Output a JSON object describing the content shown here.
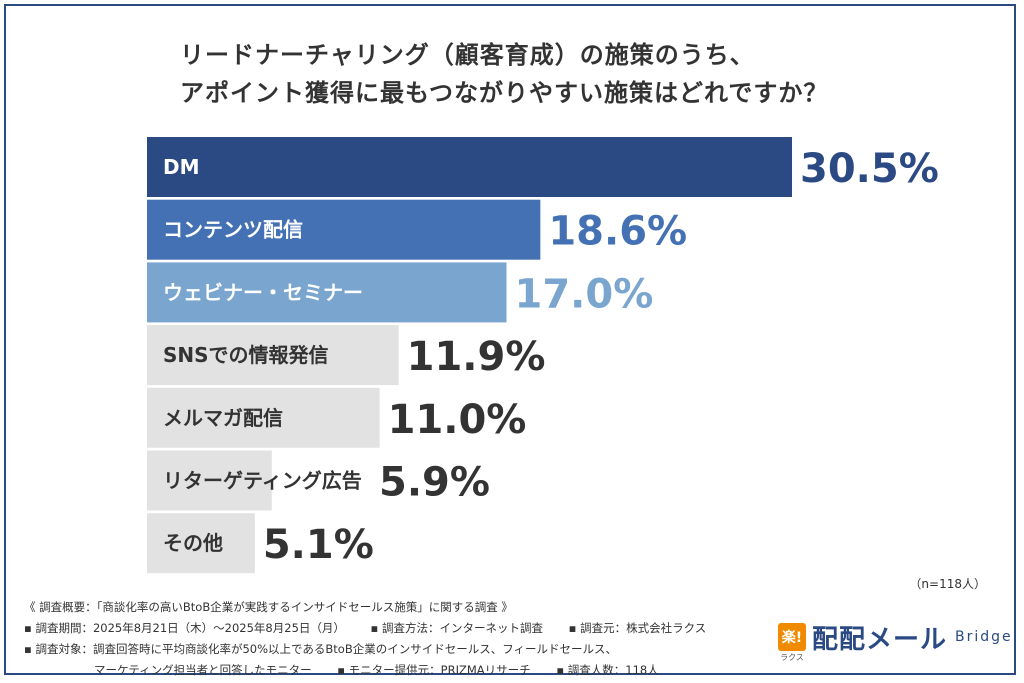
{
  "title": {
    "line1": "リードナーチャリング（顧客育成）の施策のうち、",
    "line2": "アポイント獲得に最もつながりやすい施策はどれですか？"
  },
  "chart_data": {
    "type": "bar",
    "orientation": "horizontal",
    "unit": "%",
    "categories": [
      "DM",
      "コンテンツ配信",
      "ウェビナー・セミナー",
      "SNSでの情報発信",
      "メルマガ配信",
      "リターゲティング広告",
      "その他"
    ],
    "values": [
      30.5,
      18.6,
      17.0,
      11.9,
      11.0,
      5.9,
      5.1
    ],
    "value_labels": [
      "30.5%",
      "18.6%",
      "17.0%",
      "11.9%",
      "11.0%",
      "5.9%",
      "5.1%"
    ],
    "colors": [
      "#2b4a84",
      "#4471b4",
      "#7aa5cf",
      "#e2e2e2",
      "#e2e2e2",
      "#e2e2e2",
      "#e2e2e2"
    ],
    "label_colors": [
      "#ffffff",
      "#ffffff",
      "#ffffff",
      "#333333",
      "#333333",
      "#333333",
      "#333333"
    ],
    "value_colors": [
      "#2b4a84",
      "#4471b4",
      "#7aa5cf",
      "#333333",
      "#333333",
      "#333333",
      "#333333"
    ]
  },
  "n_note": "（n=118人）",
  "footer": {
    "summary": "《 調査概要：「商談化率の高いBtoB企業が実践するインサイドセールス施策」に関する調査 》",
    "period": "▪ 調査期間：2025年8月21日（木）〜2025年8月25日（月）",
    "method": "▪ 調査方法：インターネット調査",
    "source": "▪ 調査元：株式会社ラクス",
    "target": "▪ 調査対象：調査回答時に平均商談化率が50%以上であるBtoB企業のインサイドセールス、フィールドセールス、",
    "target2": "マーケティング担当者と回答したモニター",
    "provider": "▪ モニター提供元：PRIZMAリサーチ",
    "count": "▪ 調査人数：118人"
  },
  "logo": {
    "mark": "楽!",
    "mark_sub": "ラクス",
    "name": "配配メール",
    "sub": "Bridge"
  }
}
